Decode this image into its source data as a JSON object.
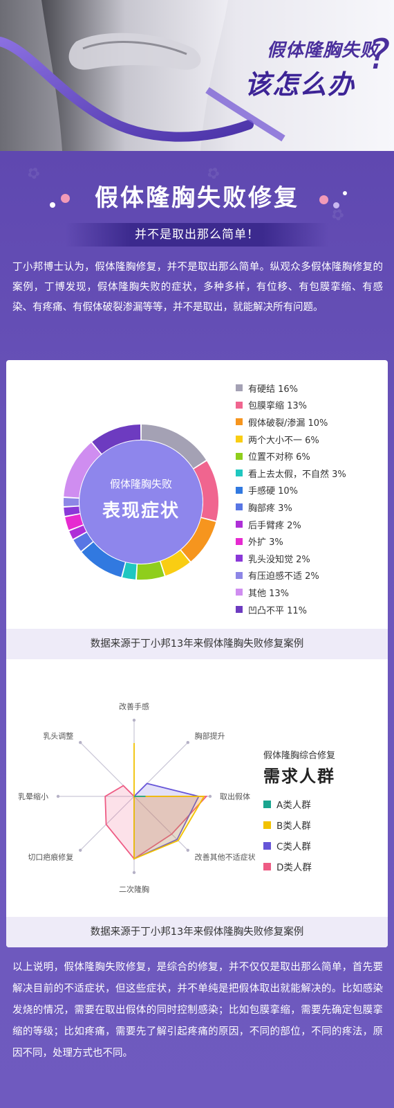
{
  "hero": {
    "line1": "假体隆胸失败",
    "line2": "该怎么办",
    "question_mark": "?"
  },
  "section": {
    "title": "假体隆胸失败修复",
    "subtitle": "并不是取出那么简单！"
  },
  "intro": "丁小邦博士认为，假体隆胸修复，并不是取出那么简单。纵观众多假体隆胸修复的案例，丁博发现，假体隆胸失败的症状，多种多样，有位移、有包膜挛缩、有感染、有疼痛、有假体破裂渗漏等等，并不是取出，就能解决所有问题。",
  "donut_card": {
    "center_small": "假体隆胸失败",
    "center_big": "表现症状",
    "footer": "数据来源于丁小邦13年来假体隆胸失败修复案例"
  },
  "radar_card": {
    "legend_small": "假体隆胸综合修复",
    "legend_big": "需求人群",
    "footer": "数据来源于丁小邦13年来假体隆胸失败修复案例"
  },
  "conclusion": "以上说明，假体隆胸失败修复，是综合的修复，并不仅仅是取出那么简单，首先要解决目前的不适症状，但这些症状，并不单纯是把假体取出就能解决的。比如感染发烧的情况，需要在取出假体的同时控制感染；比如包膜挛缩，需要先确定包膜挛缩的等级；比如疼痛，需要先了解引起疼痛的原因，不同的部位，不同的疼法，原因不同，处理方式也不同。",
  "chart_data": [
    {
      "type": "pie",
      "categories": [
        "有硬结",
        "包膜挛缩",
        "假体破裂/渗漏",
        "两个大小不一",
        "位置不对称",
        "看上去太假，不自然",
        "手感硬",
        "胸部疼",
        "后手臂疼",
        "外扩",
        "乳头没知觉",
        "有压迫感不适",
        "其他",
        "凹凸不平"
      ],
      "values": [
        16,
        13,
        10,
        6,
        6,
        3,
        10,
        3,
        2,
        3,
        2,
        2,
        13,
        11
      ],
      "labels": [
        "有硬结  16%",
        "包膜挛缩  13%",
        "假体破裂/渗漏  10%",
        "两个大小不一  6%",
        "位置不对称  6%",
        "看上去太假，不自然  3%",
        "手感硬  10%",
        "胸部疼  3%",
        "后手臂疼  2%",
        "外扩  3%",
        "乳头没知觉  2%",
        "有压迫感不适  2%",
        "其他  13%",
        "凹凸不平  11%"
      ],
      "colors": [
        "#a4a1b4",
        "#f0658f",
        "#f6951e",
        "#f9cd13",
        "#8fce1c",
        "#1fc7c0",
        "#3179e0",
        "#5876e4",
        "#ae2fd7",
        "#e62ad0",
        "#8a38d8",
        "#8d86e6",
        "#cf8df0",
        "#6d3bc0"
      ],
      "legend": "right"
    },
    {
      "type": "radar",
      "axes": [
        "改善手感",
        "胸部提升",
        "取出假体",
        "改善其他不适症状",
        "二次隆胸",
        "切口疤痕修复",
        "乳晕缩小",
        "乳头调整"
      ],
      "range": [
        0,
        100
      ],
      "series": [
        {
          "name": "A类人群",
          "color": "#1aa58f",
          "values": [
            0,
            0,
            15,
            0,
            0,
            0,
            0,
            0
          ]
        },
        {
          "name": "B类人群",
          "color": "#f2c200",
          "values": [
            70,
            0,
            92,
            82,
            82,
            0,
            0,
            0
          ]
        },
        {
          "name": "C类人群",
          "color": "#6655d8",
          "values": [
            0,
            24,
            85,
            80,
            82,
            0,
            0,
            0
          ]
        },
        {
          "name": "D类人群",
          "color": "#ee5b84",
          "values": [
            0,
            0,
            95,
            70,
            82,
            52,
            38,
            20
          ]
        }
      ],
      "legend": "right"
    }
  ]
}
